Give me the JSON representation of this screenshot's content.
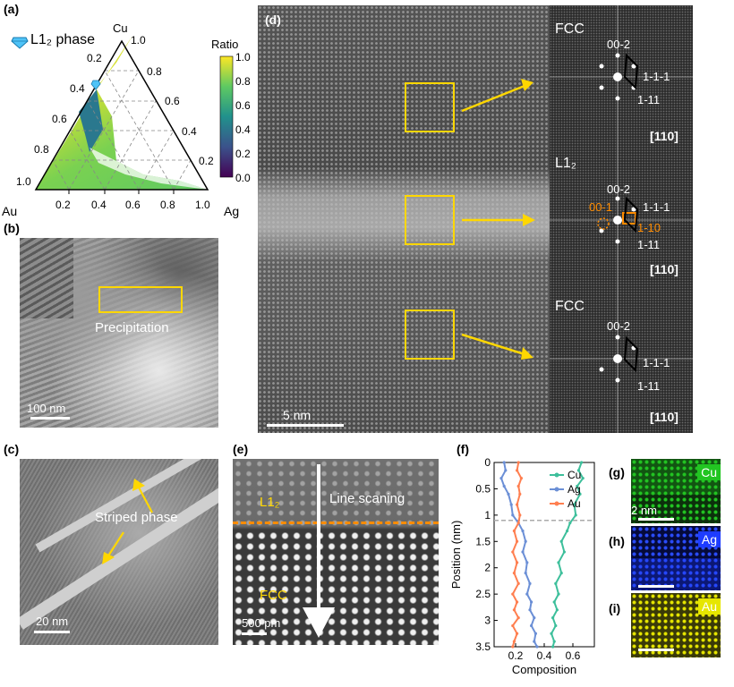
{
  "panels": {
    "a": {
      "label": "(a)",
      "phase_label": "L1₂ phase",
      "vertex_cu": "Cu",
      "vertex_au": "Au",
      "vertex_ag": "Ag",
      "ticks_bottom": [
        "0.2",
        "0.4",
        "0.6",
        "0.8",
        "1.0"
      ],
      "ticks_right": [
        "1.0",
        "0.8",
        "0.6",
        "0.4",
        "0.2"
      ],
      "ticks_left": [
        "0.2",
        "0.4",
        "0.6",
        "0.8",
        "1.0"
      ],
      "colorbar_title": "Ratio",
      "colorbar_ticks": [
        "1.0",
        "0.8",
        "0.6",
        "0.4",
        "0.2",
        "0.0"
      ],
      "colors": {
        "high": "#fde725",
        "mid": "#21918c",
        "low": "#440154",
        "accent": "#4fc3f7"
      }
    },
    "b": {
      "label": "(b)",
      "annotation": "Precipitation",
      "scale": "100 nm"
    },
    "c": {
      "label": "(c)",
      "annotation": "Striped phase",
      "scale": "20 nm"
    },
    "d": {
      "label": "(d)",
      "scale": "5 nm",
      "fft": [
        {
          "phase": "FCC",
          "spots": [
            "00-2",
            "1-1-1",
            "1-11"
          ],
          "zone": "[110]"
        },
        {
          "phase": "L1₂",
          "spots": [
            "00-2",
            "1-1-1",
            "00-1",
            "1-10",
            "1-11"
          ],
          "zone": "[110]"
        },
        {
          "phase": "FCC",
          "spots": [
            "00-2",
            "1-1-1",
            "1-11"
          ],
          "zone": "[110]"
        }
      ]
    },
    "e": {
      "label": "(e)",
      "top_phase": "L1₂",
      "bottom_phase": "FCC",
      "annotation": "Line scaning",
      "scale": "500 pm"
    },
    "f": {
      "label": "(f)"
    },
    "g": {
      "label": "(g)",
      "element": "Cu",
      "scale": "2 nm",
      "color": "#22c522"
    },
    "h": {
      "label": "(h)",
      "element": "Ag",
      "color": "#1e3cff"
    },
    "i": {
      "label": "(i)",
      "element": "Au",
      "color": "#e6e600"
    }
  },
  "chart_data": {
    "type": "line",
    "xlabel": "Composition",
    "ylabel": "Position (nm)",
    "xlim": [
      0.05,
      0.75
    ],
    "ylim": [
      3.5,
      0
    ],
    "xticks": [
      "0.2",
      "0.4",
      "0.6"
    ],
    "yticks": [
      "0",
      "0.5",
      "1",
      "1.5",
      "2",
      "2.5",
      "3",
      "3.5"
    ],
    "interface_y": 1.1,
    "series": [
      {
        "name": "Cu",
        "color": "#3dbf9b",
        "x": [
          0.66,
          0.64,
          0.67,
          0.63,
          0.65,
          0.61,
          0.62,
          0.58,
          0.56,
          0.52,
          0.54,
          0.5,
          0.52,
          0.48,
          0.5,
          0.47,
          0.49,
          0.46,
          0.48,
          0.45,
          0.47,
          0.46
        ],
        "y": [
          0,
          0.15,
          0.3,
          0.45,
          0.6,
          0.8,
          1.0,
          1.15,
          1.3,
          1.5,
          1.7,
          1.9,
          2.1,
          2.3,
          2.5,
          2.65,
          2.8,
          2.95,
          3.1,
          3.25,
          3.4,
          3.5
        ]
      },
      {
        "name": "Ag",
        "color": "#6b8fd6",
        "x": [
          0.12,
          0.13,
          0.1,
          0.12,
          0.15,
          0.17,
          0.18,
          0.22,
          0.25,
          0.27,
          0.25,
          0.28,
          0.27,
          0.3,
          0.28,
          0.31,
          0.3,
          0.33,
          0.31,
          0.34,
          0.33,
          0.35
        ],
        "y": [
          0,
          0.15,
          0.3,
          0.45,
          0.6,
          0.8,
          1.0,
          1.15,
          1.3,
          1.5,
          1.7,
          1.9,
          2.1,
          2.3,
          2.5,
          2.65,
          2.8,
          2.95,
          3.1,
          3.25,
          3.4,
          3.5
        ]
      },
      {
        "name": "Au",
        "color": "#ff7f50",
        "x": [
          0.22,
          0.21,
          0.24,
          0.22,
          0.23,
          0.21,
          0.23,
          0.22,
          0.19,
          0.21,
          0.18,
          0.21,
          0.19,
          0.22,
          0.18,
          0.21,
          0.19,
          0.22,
          0.18,
          0.21,
          0.19,
          0.18
        ],
        "y": [
          0,
          0.15,
          0.3,
          0.45,
          0.6,
          0.8,
          1.0,
          1.15,
          1.3,
          1.5,
          1.7,
          1.9,
          2.1,
          2.3,
          2.5,
          2.65,
          2.8,
          2.95,
          3.1,
          3.25,
          3.4,
          3.5
        ]
      }
    ]
  }
}
